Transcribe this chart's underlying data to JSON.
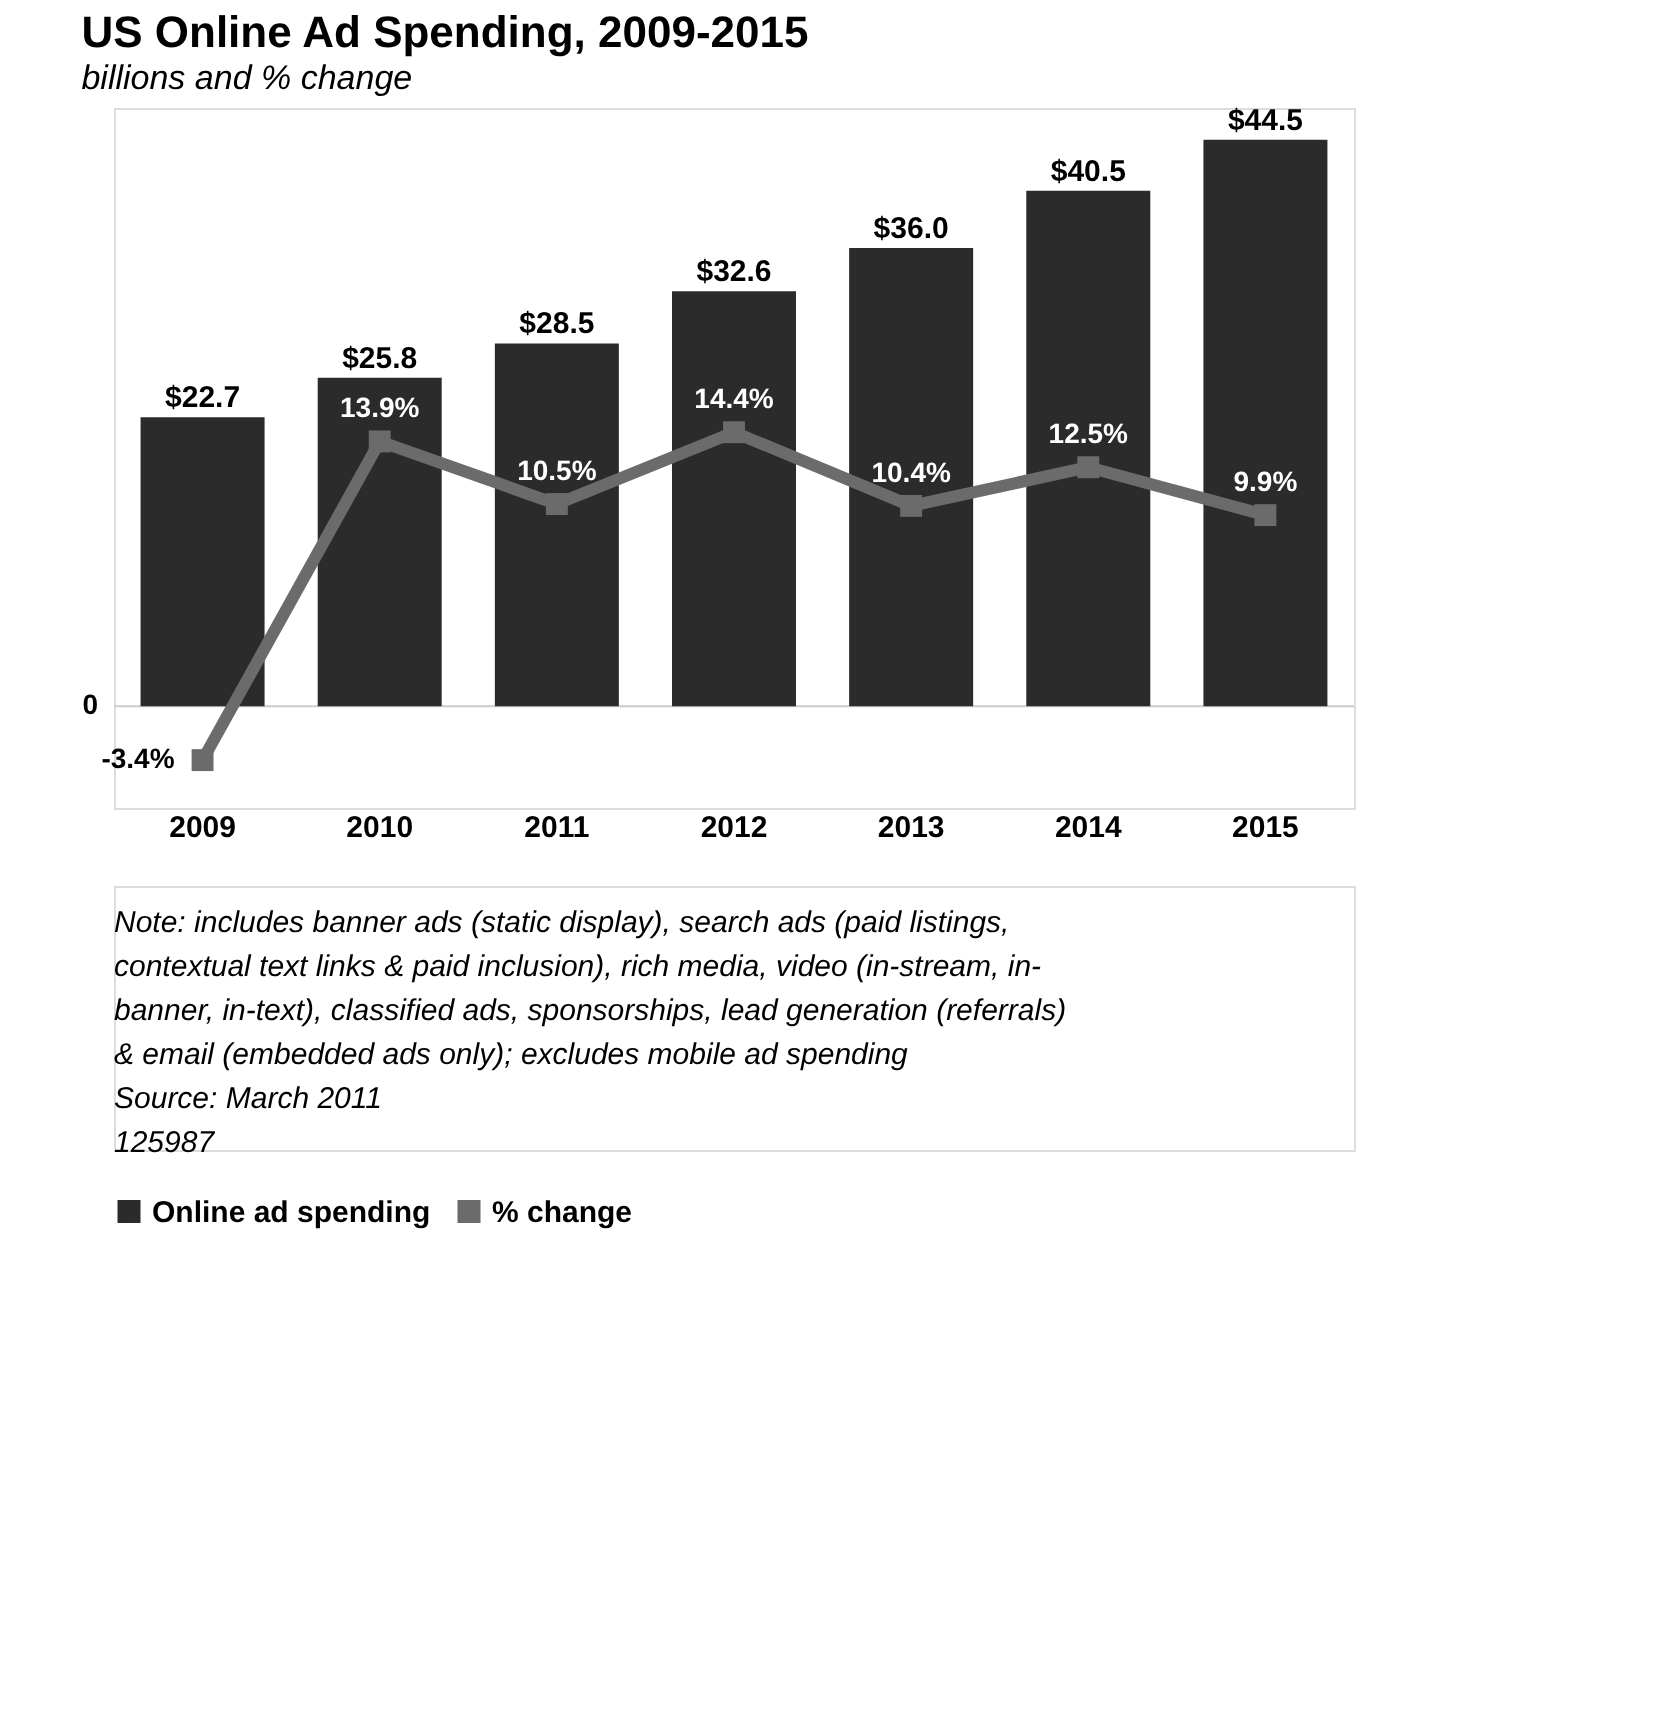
{
  "chart_data": {
    "type": "bar",
    "title": "US Online Ad Spending, 2009-2015",
    "subtitle": "billions and % change",
    "categories": [
      "2009",
      "2010",
      "2011",
      "2012",
      "2013",
      "2014",
      "2015"
    ],
    "series": [
      {
        "name": "Online ad spending",
        "color": "#2b2b2b",
        "values": [
          22.7,
          25.8,
          28.5,
          32.6,
          36.0,
          40.5,
          44.5
        ],
        "value_labels": [
          "$22.7",
          "$25.8",
          "$28.5",
          "$32.6",
          "$36.0",
          "$40.5",
          "$44.5"
        ]
      },
      {
        "name": "% change",
        "type": "line",
        "axis": "y2",
        "color": "#6b6b6b",
        "values": [
          -3.4,
          13.9,
          10.5,
          14.4,
          10.4,
          12.5,
          9.9
        ],
        "value_labels": [
          "-3.4%",
          "13.9%",
          "10.5%",
          "14.4%",
          "10.4%",
          "12.5%",
          "9.9%"
        ]
      }
    ],
    "ylim": [
      -8,
      47
    ],
    "y2lim": [
      -6,
      32
    ],
    "legend": "bottom",
    "marker": "square",
    "ref_lines": [
      {
        "axis": "y",
        "value": 0,
        "label": "0",
        "color": "#cccccc"
      }
    ],
    "annotations": [
      "Note: includes banner ads (static display), search ads (paid listings, contextual text links & paid inclusion), rich media, video (in-stream, in-banner, in-text), classified ads, sponsorships, lead generation (referrals) & email (embedded ads only); excludes mobile ad spending",
      "Source: March 2011",
      "125987"
    ]
  }
}
